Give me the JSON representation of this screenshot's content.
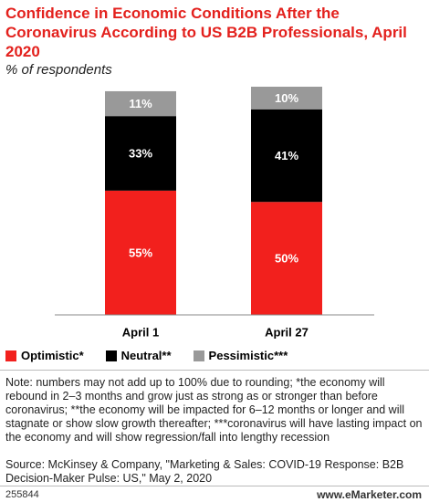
{
  "chart_data": {
    "type": "stacked-bar",
    "title": "Confidence in Economic Conditions After the Coronavirus According to US B2B Professionals, April 2020",
    "subtitle": "% of respondents",
    "categories": [
      "April 1",
      "April 27"
    ],
    "series": [
      {
        "name": "Optimistic*",
        "color": "#f2201d",
        "values": [
          55,
          50
        ],
        "value_labels": [
          "55%",
          "50%"
        ]
      },
      {
        "name": "Neutral**",
        "color": "#000000",
        "values": [
          33,
          41
        ],
        "value_labels": [
          "33%",
          "41%"
        ]
      },
      {
        "name": "Pessimistic***",
        "color": "#999999",
        "values": [
          11,
          10
        ],
        "value_labels": [
          "11%",
          "10%"
        ]
      }
    ],
    "ylim": [
      0,
      101
    ],
    "note": "Note: numbers may not add up to 100% due to rounding; *the economy will rebound in 2–3 months and grow just as strong as or stronger than before coronavirus; **the economy will be impacted for 6–12 months or longer and will stagnate or show slow growth thereafter; ***coronavirus will have lasting impact on the economy and will show regression/fall into lengthy recession",
    "source": "Source: McKinsey & Company, \"Marketing & Sales: COVID-19 Response: B2B Decision-Maker Pulse: US,\" May 2, 2020",
    "footer_id": "255844",
    "footer_site": "www.eMarketer.com"
  }
}
